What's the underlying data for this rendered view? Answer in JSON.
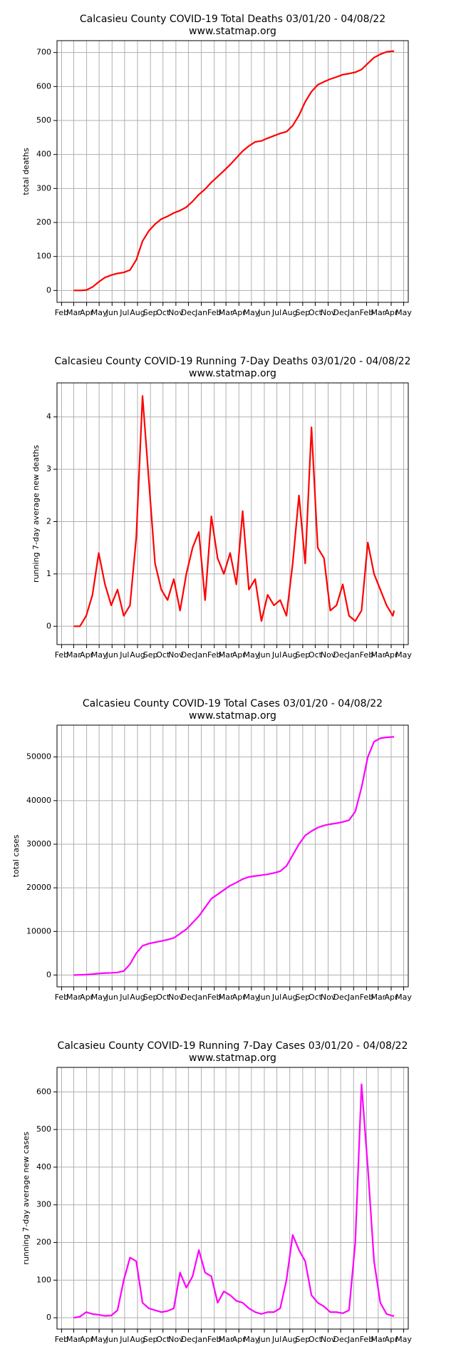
{
  "chart_data": [
    {
      "type": "line",
      "title": "Calcasieu County COVID-19 Total Deaths 03/01/20 - 04/08/22",
      "subtitle": "www.statmap.org",
      "ylabel": "total deaths",
      "color": "#ff0000",
      "grid": true,
      "x": [
        0,
        15,
        30,
        45,
        60,
        75,
        90,
        105,
        120,
        135,
        150,
        165,
        180,
        195,
        210,
        225,
        240,
        255,
        270,
        285,
        300,
        315,
        330,
        345,
        360,
        375,
        390,
        405,
        420,
        435,
        450,
        465,
        480,
        495,
        510,
        525,
        540,
        555,
        570,
        585,
        600,
        615,
        630,
        645,
        660,
        675,
        690,
        705,
        720,
        735,
        750,
        765,
        768
      ],
      "values": [
        0,
        0,
        1,
        10,
        25,
        38,
        45,
        50,
        53,
        60,
        90,
        145,
        175,
        195,
        210,
        218,
        228,
        235,
        245,
        262,
        282,
        298,
        318,
        335,
        352,
        370,
        390,
        410,
        425,
        437,
        440,
        448,
        455,
        462,
        467,
        485,
        515,
        555,
        585,
        605,
        614,
        622,
        628,
        635,
        638,
        642,
        650,
        668,
        685,
        695,
        702,
        704,
        704
      ],
      "xlim": [
        -40,
        802
      ],
      "ylim": [
        -35,
        735
      ],
      "yticks": [
        0,
        100,
        200,
        300,
        400,
        500,
        600,
        700
      ],
      "xticks": [
        {
          "value": -29,
          "label": "Feb"
        },
        {
          "value": 0,
          "label": "Mar"
        },
        {
          "value": 31,
          "label": "Apr"
        },
        {
          "value": 61,
          "label": "May"
        },
        {
          "value": 92,
          "label": "Jun"
        },
        {
          "value": 122,
          "label": "Jul"
        },
        {
          "value": 153,
          "label": "Aug"
        },
        {
          "value": 184,
          "label": "Sep"
        },
        {
          "value": 214,
          "label": "Oct"
        },
        {
          "value": 245,
          "label": "Nov"
        },
        {
          "value": 275,
          "label": "Dec"
        },
        {
          "value": 306,
          "label": "Jan"
        },
        {
          "value": 337,
          "label": "Feb"
        },
        {
          "value": 365,
          "label": "Mar"
        },
        {
          "value": 396,
          "label": "Apr"
        },
        {
          "value": 426,
          "label": "May"
        },
        {
          "value": 457,
          "label": "Jun"
        },
        {
          "value": 487,
          "label": "Jul"
        },
        {
          "value": 518,
          "label": "Aug"
        },
        {
          "value": 549,
          "label": "Sep"
        },
        {
          "value": 579,
          "label": "Oct"
        },
        {
          "value": 610,
          "label": "Nov"
        },
        {
          "value": 640,
          "label": "Dec"
        },
        {
          "value": 671,
          "label": "Jan"
        },
        {
          "value": 702,
          "label": "Feb"
        },
        {
          "value": 730,
          "label": "Mar"
        },
        {
          "value": 761,
          "label": "Apr"
        },
        {
          "value": 791,
          "label": "May"
        }
      ]
    },
    {
      "type": "line",
      "title": "Calcasieu County COVID-19 Running 7-Day Deaths 03/01/20 - 04/08/22",
      "subtitle": "www.statmap.org",
      "ylabel": "running 7-day average new deaths",
      "color": "#ff0000",
      "grid": true,
      "x": [
        0,
        15,
        30,
        45,
        60,
        75,
        90,
        105,
        120,
        135,
        150,
        165,
        180,
        195,
        210,
        225,
        240,
        255,
        270,
        285,
        300,
        315,
        330,
        345,
        360,
        375,
        390,
        405,
        420,
        435,
        450,
        465,
        480,
        495,
        510,
        525,
        540,
        555,
        570,
        585,
        600,
        615,
        630,
        645,
        660,
        675,
        690,
        705,
        720,
        735,
        750,
        765,
        768
      ],
      "values": [
        0,
        0,
        0.2,
        0.6,
        1.4,
        0.8,
        0.4,
        0.7,
        0.2,
        0.4,
        1.7,
        4.4,
        2.8,
        1.2,
        0.7,
        0.5,
        0.9,
        0.3,
        1.0,
        1.5,
        1.8,
        0.5,
        2.1,
        1.3,
        1.0,
        1.4,
        0.8,
        2.2,
        0.7,
        0.9,
        0.1,
        0.6,
        0.4,
        0.5,
        0.2,
        1.2,
        2.5,
        1.2,
        3.8,
        1.5,
        1.3,
        0.3,
        0.4,
        0.8,
        0.2,
        0.1,
        0.3,
        1.6,
        1.0,
        0.7,
        0.4,
        0.2,
        0.3
      ],
      "xlim": [
        -40,
        802
      ],
      "ylim": [
        -0.35,
        4.65
      ],
      "yticks": [
        0,
        1,
        2,
        3,
        4
      ],
      "xticks": [
        {
          "value": -29,
          "label": "Feb"
        },
        {
          "value": 0,
          "label": "Mar"
        },
        {
          "value": 31,
          "label": "Apr"
        },
        {
          "value": 61,
          "label": "May"
        },
        {
          "value": 92,
          "label": "Jun"
        },
        {
          "value": 122,
          "label": "Jul"
        },
        {
          "value": 153,
          "label": "Aug"
        },
        {
          "value": 184,
          "label": "Sep"
        },
        {
          "value": 214,
          "label": "Oct"
        },
        {
          "value": 245,
          "label": "Nov"
        },
        {
          "value": 275,
          "label": "Dec"
        },
        {
          "value": 306,
          "label": "Jan"
        },
        {
          "value": 337,
          "label": "Feb"
        },
        {
          "value": 365,
          "label": "Mar"
        },
        {
          "value": 396,
          "label": "Apr"
        },
        {
          "value": 426,
          "label": "May"
        },
        {
          "value": 457,
          "label": "Jun"
        },
        {
          "value": 487,
          "label": "Jul"
        },
        {
          "value": 518,
          "label": "Aug"
        },
        {
          "value": 549,
          "label": "Sep"
        },
        {
          "value": 579,
          "label": "Oct"
        },
        {
          "value": 610,
          "label": "Nov"
        },
        {
          "value": 640,
          "label": "Dec"
        },
        {
          "value": 671,
          "label": "Jan"
        },
        {
          "value": 702,
          "label": "Feb"
        },
        {
          "value": 730,
          "label": "Mar"
        },
        {
          "value": 761,
          "label": "Apr"
        },
        {
          "value": 791,
          "label": "May"
        }
      ]
    },
    {
      "type": "line",
      "title": "Calcasieu County COVID-19 Total Cases 03/01/20 - 04/08/22",
      "subtitle": "www.statmap.org",
      "ylabel": "total cases",
      "color": "#ff00ff",
      "grid": true,
      "x": [
        0,
        15,
        30,
        45,
        60,
        75,
        90,
        105,
        120,
        135,
        150,
        165,
        180,
        195,
        210,
        225,
        240,
        255,
        270,
        285,
        300,
        315,
        330,
        345,
        360,
        375,
        390,
        405,
        420,
        435,
        450,
        465,
        480,
        495,
        510,
        525,
        540,
        555,
        570,
        585,
        600,
        615,
        630,
        645,
        660,
        675,
        690,
        705,
        720,
        735,
        750,
        765,
        768
      ],
      "values": [
        0,
        50,
        100,
        200,
        350,
        450,
        500,
        600,
        900,
        2500,
        5000,
        6700,
        7200,
        7500,
        7800,
        8100,
        8500,
        9500,
        10500,
        12000,
        13500,
        15500,
        17500,
        18500,
        19500,
        20500,
        21200,
        22000,
        22500,
        22700,
        22900,
        23100,
        23400,
        23800,
        25000,
        27500,
        30000,
        32000,
        33000,
        33800,
        34300,
        34600,
        34800,
        35100,
        35500,
        37500,
        43000,
        50000,
        53500,
        54300,
        54500,
        54600,
        54600
      ],
      "xlim": [
        -40,
        802
      ],
      "ylim": [
        -2700,
        57300
      ],
      "yticks": [
        0,
        10000,
        20000,
        30000,
        40000,
        50000
      ],
      "xticks": [
        {
          "value": -29,
          "label": "Feb"
        },
        {
          "value": 0,
          "label": "Mar"
        },
        {
          "value": 31,
          "label": "Apr"
        },
        {
          "value": 61,
          "label": "May"
        },
        {
          "value": 92,
          "label": "Jun"
        },
        {
          "value": 122,
          "label": "Jul"
        },
        {
          "value": 153,
          "label": "Aug"
        },
        {
          "value": 184,
          "label": "Sep"
        },
        {
          "value": 214,
          "label": "Oct"
        },
        {
          "value": 245,
          "label": "Nov"
        },
        {
          "value": 275,
          "label": "Dec"
        },
        {
          "value": 306,
          "label": "Jan"
        },
        {
          "value": 337,
          "label": "Feb"
        },
        {
          "value": 365,
          "label": "Mar"
        },
        {
          "value": 396,
          "label": "Apr"
        },
        {
          "value": 426,
          "label": "May"
        },
        {
          "value": 457,
          "label": "Jun"
        },
        {
          "value": 487,
          "label": "Jul"
        },
        {
          "value": 518,
          "label": "Aug"
        },
        {
          "value": 549,
          "label": "Sep"
        },
        {
          "value": 579,
          "label": "Oct"
        },
        {
          "value": 610,
          "label": "Nov"
        },
        {
          "value": 640,
          "label": "Dec"
        },
        {
          "value": 671,
          "label": "Jan"
        },
        {
          "value": 702,
          "label": "Feb"
        },
        {
          "value": 730,
          "label": "Mar"
        },
        {
          "value": 761,
          "label": "Apr"
        },
        {
          "value": 791,
          "label": "May"
        }
      ]
    },
    {
      "type": "line",
      "title": "Calcasieu County COVID-19 Running 7-Day Cases 03/01/20 - 04/08/22",
      "subtitle": "www.statmap.org",
      "ylabel": "running 7-day average new cases",
      "color": "#ff00ff",
      "grid": true,
      "x": [
        0,
        15,
        30,
        45,
        60,
        75,
        90,
        105,
        120,
        135,
        150,
        165,
        180,
        195,
        210,
        225,
        240,
        255,
        270,
        285,
        300,
        315,
        330,
        345,
        360,
        375,
        390,
        405,
        420,
        435,
        450,
        465,
        480,
        495,
        510,
        525,
        540,
        555,
        570,
        585,
        600,
        615,
        630,
        645,
        660,
        675,
        690,
        705,
        720,
        735,
        750,
        765,
        768
      ],
      "values": [
        0,
        3,
        15,
        10,
        8,
        5,
        6,
        20,
        100,
        160,
        150,
        40,
        25,
        20,
        15,
        18,
        25,
        120,
        80,
        110,
        180,
        120,
        110,
        40,
        70,
        60,
        45,
        40,
        25,
        15,
        10,
        15,
        15,
        25,
        100,
        220,
        180,
        150,
        60,
        40,
        30,
        15,
        15,
        12,
        20,
        200,
        620,
        400,
        150,
        40,
        10,
        5,
        5
      ],
      "xlim": [
        -40,
        802
      ],
      "ylim": [
        -30,
        665
      ],
      "yticks": [
        0,
        100,
        200,
        300,
        400,
        500,
        600
      ],
      "xticks": [
        {
          "value": -29,
          "label": "Feb"
        },
        {
          "value": 0,
          "label": "Mar"
        },
        {
          "value": 31,
          "label": "Apr"
        },
        {
          "value": 61,
          "label": "May"
        },
        {
          "value": 92,
          "label": "Jun"
        },
        {
          "value": 122,
          "label": "Jul"
        },
        {
          "value": 153,
          "label": "Aug"
        },
        {
          "value": 184,
          "label": "Sep"
        },
        {
          "value": 214,
          "label": "Oct"
        },
        {
          "value": 245,
          "label": "Nov"
        },
        {
          "value": 275,
          "label": "Dec"
        },
        {
          "value": 306,
          "label": "Jan"
        },
        {
          "value": 337,
          "label": "Feb"
        },
        {
          "value": 365,
          "label": "Mar"
        },
        {
          "value": 396,
          "label": "Apr"
        },
        {
          "value": 426,
          "label": "May"
        },
        {
          "value": 457,
          "label": "Jun"
        },
        {
          "value": 487,
          "label": "Jul"
        },
        {
          "value": 518,
          "label": "Aug"
        },
        {
          "value": 549,
          "label": "Sep"
        },
        {
          "value": 579,
          "label": "Oct"
        },
        {
          "value": 610,
          "label": "Nov"
        },
        {
          "value": 640,
          "label": "Dec"
        },
        {
          "value": 671,
          "label": "Jan"
        },
        {
          "value": 702,
          "label": "Feb"
        },
        {
          "value": 730,
          "label": "Mar"
        },
        {
          "value": 761,
          "label": "Apr"
        },
        {
          "value": 791,
          "label": "May"
        }
      ]
    }
  ]
}
